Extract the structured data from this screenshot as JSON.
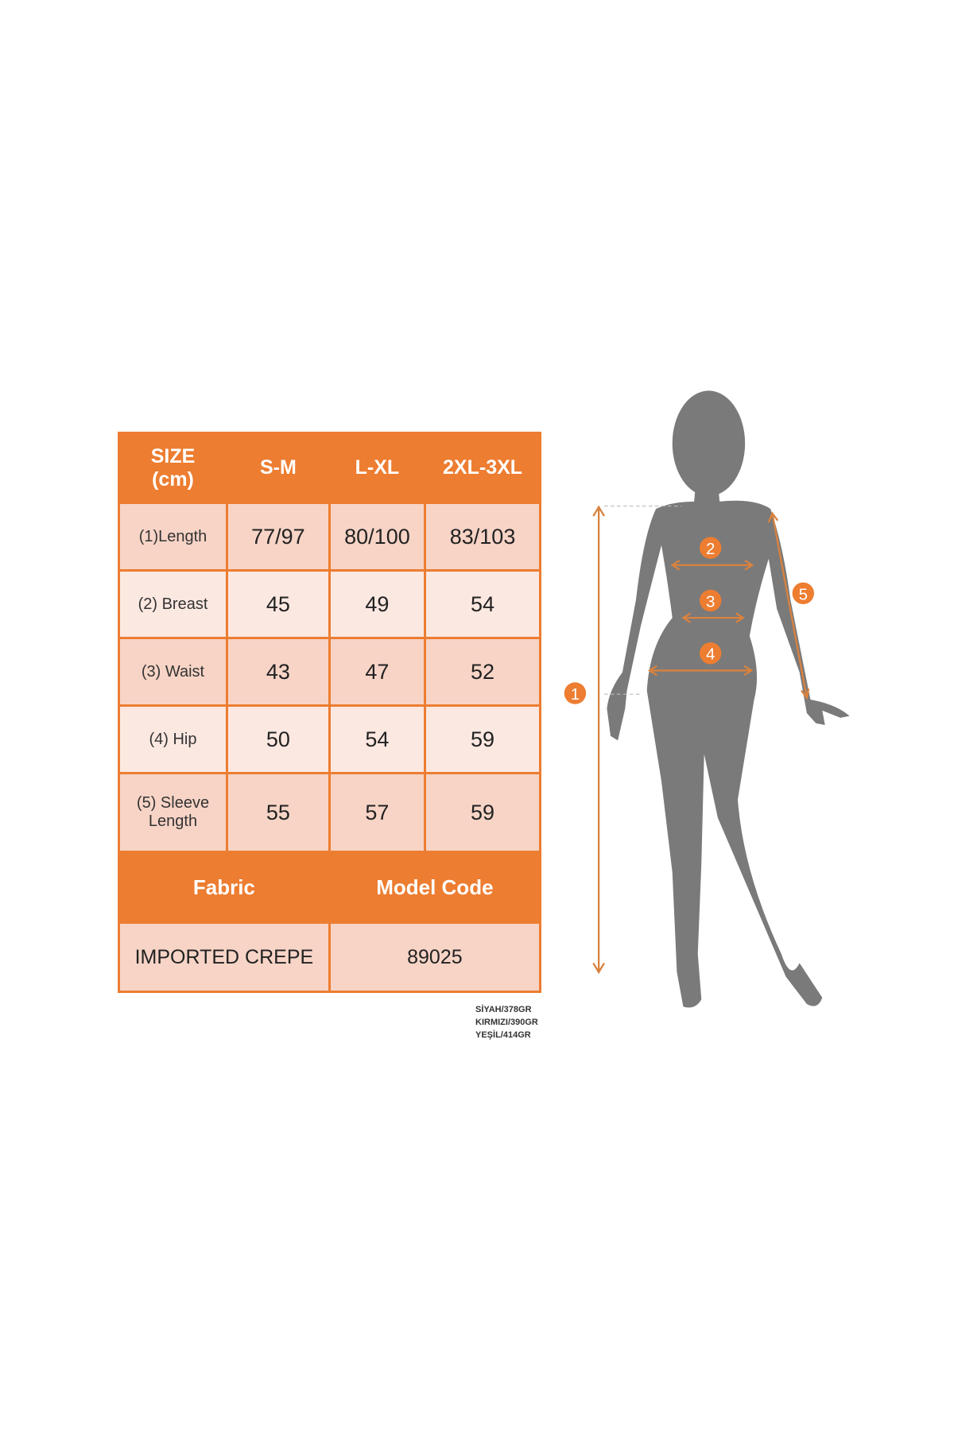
{
  "table": {
    "header": [
      "SIZE\n(cm)",
      "S-M",
      "L-XL",
      "2XL-3XL"
    ],
    "size_header_lines": [
      "SIZE",
      "(cm)"
    ],
    "rows": [
      {
        "label": "(1)Length",
        "values": [
          "77/97",
          "80/100",
          "83/103"
        ]
      },
      {
        "label": "(2) Breast",
        "values": [
          "45",
          "49",
          "54"
        ]
      },
      {
        "label": "(3) Waist",
        "values": [
          "43",
          "47",
          "52"
        ]
      },
      {
        "label": "(4) Hip",
        "values": [
          "50",
          "54",
          "59"
        ]
      },
      {
        "label": "(5) Sleeve Length",
        "values": [
          "55",
          "57",
          "59"
        ]
      }
    ],
    "fabric_label": "Fabric",
    "model_code_label": "Model Code",
    "fabric_value": "IMPORTED CREPE",
    "model_code_value": "89025"
  },
  "weights": [
    "SİYAH/378GR",
    "KIRMIZI/390GR",
    "YEŞİL/414GR"
  ],
  "markers": [
    "1",
    "2",
    "3",
    "4",
    "5"
  ],
  "colors": {
    "accent": "#ED7D31",
    "cell_dark": "#F7D4C6",
    "cell_light": "#FBE8E1",
    "silhouette": "#7a7a7a"
  }
}
